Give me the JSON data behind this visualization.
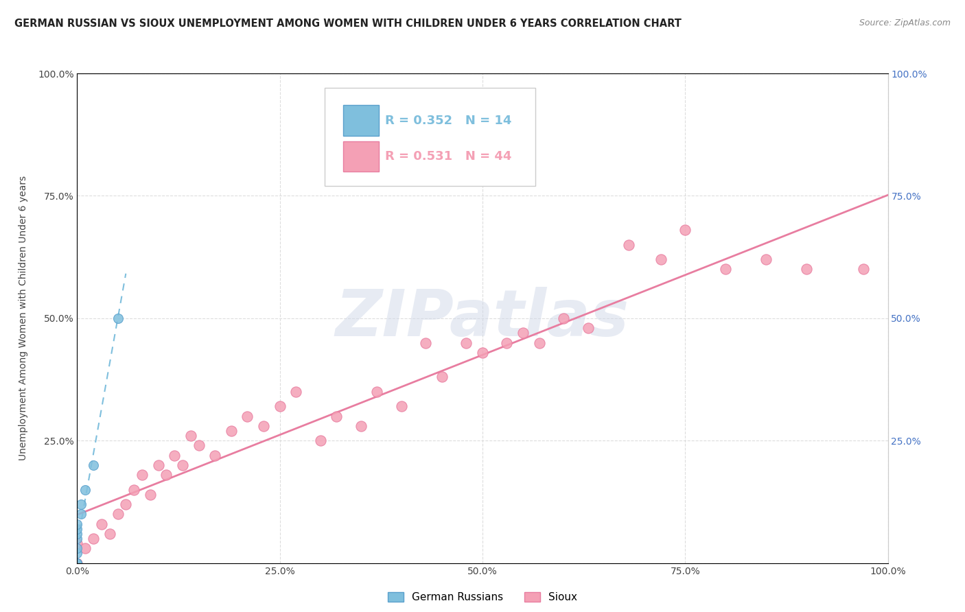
{
  "title": "GERMAN RUSSIAN VS SIOUX UNEMPLOYMENT AMONG WOMEN WITH CHILDREN UNDER 6 YEARS CORRELATION CHART",
  "source": "Source: ZipAtlas.com",
  "ylabel": "Unemployment Among Women with Children Under 6 years",
  "xlim": [
    0,
    1.0
  ],
  "ylim": [
    0,
    1.0
  ],
  "xticks": [
    0.0,
    0.25,
    0.5,
    0.75,
    1.0
  ],
  "xticklabels": [
    "0.0%",
    "25.0%",
    "50.0%",
    "75.0%",
    "100.0%"
  ],
  "yticks": [
    0.0,
    0.25,
    0.5,
    0.75,
    1.0
  ],
  "yticklabels": [
    "",
    "25.0%",
    "50.0%",
    "75.0%",
    "100.0%"
  ],
  "right_yticklabels": [
    "",
    "25.0%",
    "50.0%",
    "75.0%",
    "100.0%"
  ],
  "german_russian_color": "#7fbfdd",
  "german_russian_edge": "#5aA0cc",
  "sioux_color": "#f4a0b5",
  "sioux_edge": "#e87da0",
  "sioux_line_color": "#e87da0",
  "gr_line_color": "#7fbfdd",
  "german_russian_R": 0.352,
  "german_russian_N": 14,
  "sioux_R": 0.531,
  "sioux_N": 44,
  "watermark_text": "ZIPatlas",
  "legend_label_gr": "German Russians",
  "legend_label_sioux": "Sioux",
  "german_russians_x": [
    0.0,
    0.0,
    0.0,
    0.0,
    0.0,
    0.0,
    0.0,
    0.0,
    0.0,
    0.005,
    0.005,
    0.01,
    0.02,
    0.05
  ],
  "german_russians_y": [
    0.0,
    0.0,
    0.0,
    0.02,
    0.03,
    0.05,
    0.06,
    0.07,
    0.08,
    0.1,
    0.12,
    0.15,
    0.2,
    0.5
  ],
  "sioux_x": [
    0.0,
    0.0,
    0.01,
    0.02,
    0.03,
    0.04,
    0.05,
    0.06,
    0.07,
    0.08,
    0.09,
    0.1,
    0.11,
    0.12,
    0.13,
    0.14,
    0.15,
    0.17,
    0.19,
    0.21,
    0.23,
    0.25,
    0.27,
    0.3,
    0.32,
    0.35,
    0.37,
    0.4,
    0.43,
    0.45,
    0.48,
    0.5,
    0.53,
    0.55,
    0.57,
    0.6,
    0.63,
    0.68,
    0.72,
    0.75,
    0.8,
    0.85,
    0.9,
    0.97
  ],
  "sioux_y": [
    0.0,
    0.04,
    0.03,
    0.05,
    0.08,
    0.06,
    0.1,
    0.12,
    0.15,
    0.18,
    0.14,
    0.2,
    0.18,
    0.22,
    0.2,
    0.26,
    0.24,
    0.22,
    0.27,
    0.3,
    0.28,
    0.32,
    0.35,
    0.25,
    0.3,
    0.28,
    0.35,
    0.32,
    0.45,
    0.38,
    0.45,
    0.43,
    0.45,
    0.47,
    0.45,
    0.5,
    0.48,
    0.65,
    0.62,
    0.68,
    0.6,
    0.62,
    0.6,
    0.6
  ]
}
